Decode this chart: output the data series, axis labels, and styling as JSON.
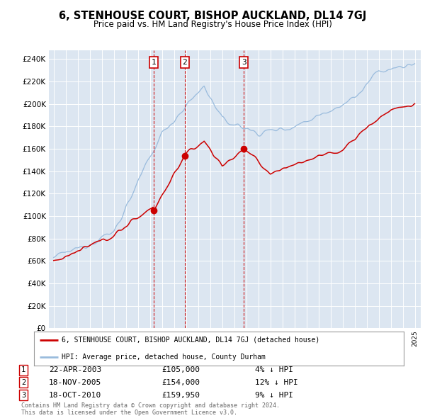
{
  "title": "6, STENHOUSE COURT, BISHOP AUCKLAND, DL14 7GJ",
  "subtitle": "Price paid vs. HM Land Registry's House Price Index (HPI)",
  "legend_property": "6, STENHOUSE COURT, BISHOP AUCKLAND, DL14 7GJ (detached house)",
  "legend_hpi": "HPI: Average price, detached house, County Durham",
  "copyright": "Contains HM Land Registry data © Crown copyright and database right 2024.\nThis data is licensed under the Open Government Licence v3.0.",
  "transactions": [
    {
      "num": 1,
      "date": "22-APR-2003",
      "price": "£105,000",
      "pct": "4% ↓ HPI"
    },
    {
      "num": 2,
      "date": "18-NOV-2005",
      "price": "£154,000",
      "pct": "12% ↓ HPI"
    },
    {
      "num": 3,
      "date": "18-OCT-2010",
      "price": "£159,950",
      "pct": "9% ↓ HPI"
    }
  ],
  "sale_years": [
    2003.31,
    2005.89,
    2010.8
  ],
  "sale_prices": [
    105000,
    154000,
    159950
  ],
  "ylim": [
    0,
    248000
  ],
  "yticks": [
    0,
    20000,
    40000,
    60000,
    80000,
    100000,
    120000,
    140000,
    160000,
    180000,
    200000,
    220000,
    240000
  ],
  "bg_color": "#dce6f1",
  "grid_color": "#ffffff",
  "red_line_color": "#cc0000",
  "blue_line_color": "#99bbdd",
  "vline_color": "#cc0000",
  "fig_width": 6.0,
  "fig_height": 5.9
}
